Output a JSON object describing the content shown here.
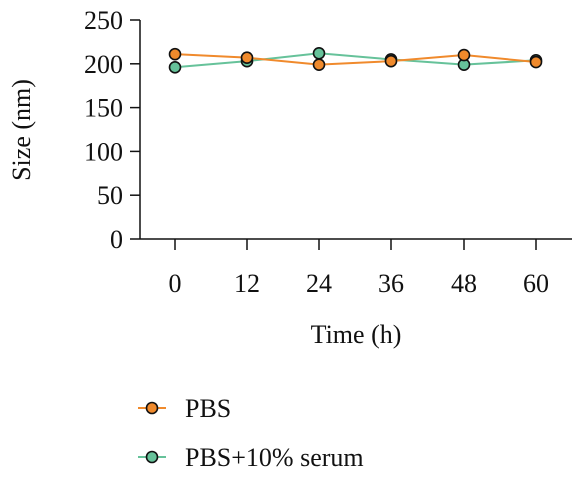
{
  "chart_data": {
    "type": "line",
    "x": [
      0,
      12,
      24,
      36,
      48,
      60
    ],
    "xlabel": "Time (h)",
    "ylabel": "Size (nm)",
    "ylim": [
      0,
      250
    ],
    "yticks": [
      0,
      50,
      100,
      150,
      200,
      250
    ],
    "xtick_labels": [
      "0",
      "12",
      "24",
      "36",
      "48",
      "60"
    ],
    "grid": false,
    "legend_position": "bottom",
    "series": [
      {
        "name": "PBS",
        "color": "#f08a2c",
        "values": [
          211,
          207,
          199,
          203,
          210,
          202
        ]
      },
      {
        "name": "PBS+10% serum",
        "color": "#66c29a",
        "values": [
          196,
          203,
          212,
          205,
          199,
          204
        ]
      }
    ]
  }
}
